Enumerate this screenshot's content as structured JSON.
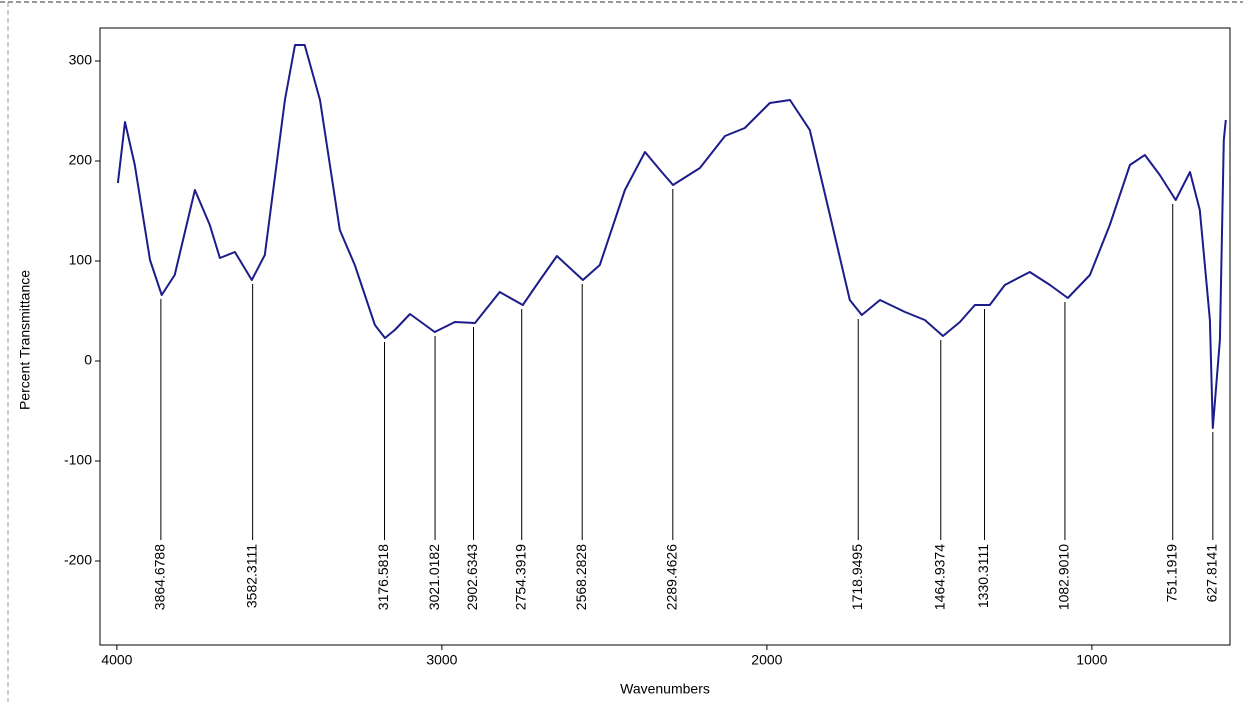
{
  "chart_data": {
    "type": "line",
    "x_label": "Wavenumbers",
    "y_label": "Percent Transmittance",
    "xlim": [
      4052,
      575
    ],
    "ylim": [
      -284,
      333
    ],
    "xticks": [
      4000,
      3000,
      2000,
      1000
    ],
    "yticks": [
      300,
      200,
      100,
      0,
      -100,
      -200
    ],
    "series": [
      {
        "color": "#1c1c8a",
        "x": [
          3997,
          3975,
          3945,
          3898,
          3862,
          3822,
          3760,
          3714,
          3683,
          3637,
          3585,
          3545,
          3483,
          3452,
          3422,
          3375,
          3314,
          3268,
          3206,
          3175,
          3145,
          3098,
          3022,
          2960,
          2898,
          2822,
          2751,
          2698,
          2646,
          2566,
          2514,
          2437,
          2375,
          2329,
          2289,
          2206,
          2129,
          2068,
          1991,
          1929,
          1868,
          1806,
          1745,
          1708,
          1652,
          1575,
          1514,
          1458,
          1406,
          1360,
          1314,
          1268,
          1191,
          1129,
          1074,
          1006,
          945,
          883,
          837,
          791,
          742,
          698,
          668,
          637,
          628,
          606,
          594,
          588
        ],
        "values": [
          178,
          239,
          196,
          101,
          66,
          86,
          171,
          136,
          103,
          109,
          81,
          106,
          261,
          316,
          316,
          261,
          131,
          96,
          36,
          23,
          31,
          47,
          29,
          39,
          38,
          69,
          56,
          81,
          105,
          81,
          96,
          171,
          209,
          191,
          176,
          193,
          225,
          233,
          258,
          261,
          231,
          146,
          61,
          46,
          61,
          49,
          41,
          25,
          39,
          56,
          56,
          76,
          89,
          76,
          63,
          86,
          136,
          196,
          206,
          186,
          161,
          189,
          151,
          41,
          -67,
          21,
          221,
          241
        ]
      }
    ],
    "annotations": [
      {
        "label": "3864.6788",
        "x": 3864.6788,
        "y": 66
      },
      {
        "label": "3582.3111",
        "x": 3582.3111,
        "y": 81
      },
      {
        "label": "3176.5818",
        "x": 3176.5818,
        "y": 23
      },
      {
        "label": "3021.0182",
        "x": 3021.0182,
        "y": 29
      },
      {
        "label": "2902.6343",
        "x": 2902.6343,
        "y": 38
      },
      {
        "label": "2754.3919",
        "x": 2754.3919,
        "y": 56
      },
      {
        "label": "2568.2828",
        "x": 2568.2828,
        "y": 81
      },
      {
        "label": "2289.4626",
        "x": 2289.4626,
        "y": 176
      },
      {
        "label": "1718.9495",
        "x": 1718.9495,
        "y": 46
      },
      {
        "label": "1464.9374",
        "x": 1464.9374,
        "y": 25
      },
      {
        "label": "1330.3111",
        "x": 1330.3111,
        "y": 56
      },
      {
        "label": "1082.9010",
        "x": 1082.901,
        "y": 63
      },
      {
        "label": "751.1919",
        "x": 751.1919,
        "y": 161
      },
      {
        "label": "627.8141",
        "x": 627.8141,
        "y": -67
      }
    ]
  }
}
